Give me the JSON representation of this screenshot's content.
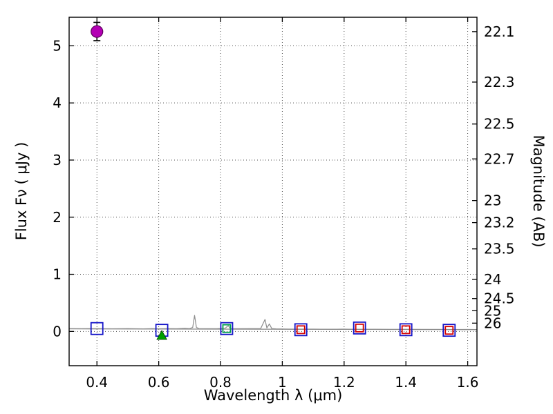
{
  "chart_data": {
    "type": "scatter",
    "title": "",
    "xlabel": "Wavelength  λ (μm)",
    "ylabel": "Flux  Fν  ( μJy )",
    "ylabel_right": "Magnitude (AB)",
    "xlim": [
      0.31,
      1.63
    ],
    "ylim": [
      -0.6,
      5.5
    ],
    "grid": "dotted",
    "x_ticks": [
      {
        "v": 0.4,
        "label": "0.4"
      },
      {
        "v": 0.6,
        "label": "0.6"
      },
      {
        "v": 0.8,
        "label": "0.8"
      },
      {
        "v": 1.0,
        "label": "1"
      },
      {
        "v": 1.2,
        "label": "1.2"
      },
      {
        "v": 1.4,
        "label": "1.4"
      },
      {
        "v": 1.6,
        "label": "1.6"
      }
    ],
    "y_ticks": [
      {
        "v": 0,
        "label": "0"
      },
      {
        "v": 1,
        "label": "1"
      },
      {
        "v": 2,
        "label": "2"
      },
      {
        "v": 3,
        "label": "3"
      },
      {
        "v": 4,
        "label": "4"
      },
      {
        "v": 5,
        "label": "5"
      }
    ],
    "right_ticks": [
      {
        "label": "22.1",
        "flux": 5.248
      },
      {
        "label": "22.3",
        "flux": 4.365
      },
      {
        "label": "22.5",
        "flux": 3.631
      },
      {
        "label": "22.7",
        "flux": 3.02
      },
      {
        "label": "23",
        "flux": 2.291
      },
      {
        "label": "23.2",
        "flux": 1.905
      },
      {
        "label": "23.5",
        "flux": 1.445
      },
      {
        "label": "24",
        "flux": 0.912
      },
      {
        "label": "24.5",
        "flux": 0.575
      },
      {
        "label": "25",
        "flux": 0.363
      },
      {
        "label": "26",
        "flux": 0.145
      }
    ],
    "series": [
      {
        "name": "observed-photometry",
        "marker": "open-square",
        "size": 17,
        "color": "#1414c8",
        "points": [
          [
            0.4,
            0.05
          ],
          [
            0.61,
            0.02
          ],
          [
            0.82,
            0.05
          ],
          [
            1.06,
            0.03
          ],
          [
            1.25,
            0.06
          ],
          [
            1.4,
            0.03
          ],
          [
            1.54,
            0.02
          ]
        ]
      },
      {
        "name": "model-photometry",
        "marker": "open-square",
        "size": 11,
        "color": "#d40000",
        "points": [
          [
            1.06,
            0.03
          ],
          [
            1.25,
            0.06
          ],
          [
            1.4,
            0.03
          ],
          [
            1.54,
            0.02
          ]
        ]
      },
      {
        "name": "model-photometry-green",
        "marker": "open-square",
        "size": 11,
        "color": "#00a050",
        "points": [
          [
            0.82,
            0.05
          ]
        ]
      },
      {
        "name": "limit-point",
        "marker": "filled-triangle-up",
        "size": 13,
        "color": "#00a000",
        "points": [
          [
            0.61,
            -0.07
          ]
        ]
      },
      {
        "name": "detection-point",
        "marker": "filled-circle",
        "size": 17,
        "color": "#b400b4",
        "edge": "#5a005a",
        "yerr": 0.16,
        "points": [
          [
            0.4,
            5.25
          ]
        ]
      }
    ],
    "spectrum": {
      "name": "model-spectrum",
      "color": "#8c8c8c",
      "points": [
        [
          0.31,
          0.05
        ],
        [
          0.35,
          0.048
        ],
        [
          0.4,
          0.05
        ],
        [
          0.45,
          0.047
        ],
        [
          0.5,
          0.05
        ],
        [
          0.55,
          0.045
        ],
        [
          0.58,
          0.05
        ],
        [
          0.6,
          0.046
        ],
        [
          0.63,
          0.05
        ],
        [
          0.66,
          0.048
        ],
        [
          0.685,
          0.056
        ],
        [
          0.7,
          0.05
        ],
        [
          0.71,
          0.07
        ],
        [
          0.716,
          0.28
        ],
        [
          0.722,
          0.07
        ],
        [
          0.73,
          0.05
        ],
        [
          0.76,
          0.048
        ],
        [
          0.79,
          0.05
        ],
        [
          0.815,
          0.056
        ],
        [
          0.825,
          0.1
        ],
        [
          0.832,
          0.05
        ],
        [
          0.86,
          0.048
        ],
        [
          0.9,
          0.05
        ],
        [
          0.93,
          0.05
        ],
        [
          0.944,
          0.21
        ],
        [
          0.95,
          0.06
        ],
        [
          0.958,
          0.13
        ],
        [
          0.966,
          0.05
        ],
        [
          0.98,
          0.045
        ],
        [
          1.02,
          0.04
        ],
        [
          1.06,
          0.04
        ],
        [
          1.1,
          0.04
        ],
        [
          1.15,
          0.038
        ],
        [
          1.2,
          0.04
        ],
        [
          1.25,
          0.036
        ],
        [
          1.3,
          0.038
        ],
        [
          1.35,
          0.035
        ],
        [
          1.4,
          0.036
        ],
        [
          1.45,
          0.034
        ],
        [
          1.5,
          0.035
        ],
        [
          1.55,
          0.033
        ],
        [
          1.6,
          0.034
        ],
        [
          1.63,
          0.033
        ]
      ],
      "baseline": [
        [
          0.31,
          0.045
        ],
        [
          1.63,
          0.032
        ]
      ]
    }
  }
}
